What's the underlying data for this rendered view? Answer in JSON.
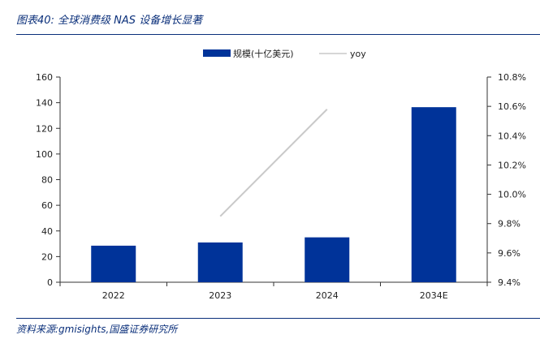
{
  "figure_title": "图表40:  全球消费级 NAS 设备增长显著",
  "source": "资料来源:gmisights,国盛证券研究所",
  "colors": {
    "bar": "#003399",
    "line": "#c9c9c9",
    "axis": "#333333",
    "title": "#0a2f7a"
  },
  "chart_data": {
    "type": "bar",
    "categories": [
      "2022",
      "2023",
      "2024",
      "2034E"
    ],
    "series": [
      {
        "name": "规模(十亿美元)",
        "type": "bar",
        "axis": "left",
        "values": [
          28.5,
          31,
          35,
          136.5
        ]
      },
      {
        "name": "yoy",
        "type": "line",
        "axis": "right",
        "values": [
          null,
          9.85,
          10.58,
          null
        ]
      }
    ],
    "y_left": {
      "min": 0,
      "max": 160,
      "ticks": [
        "0",
        "20",
        "40",
        "60",
        "80",
        "100",
        "120",
        "140",
        "160"
      ]
    },
    "y_right": {
      "min": 9.4,
      "max": 10.8,
      "ticks": [
        "9.4%",
        "9.6%",
        "9.8%",
        "10.0%",
        "10.2%",
        "10.4%",
        "10.6%",
        "10.8%"
      ]
    },
    "legend_position": "top-center",
    "grid": false
  }
}
